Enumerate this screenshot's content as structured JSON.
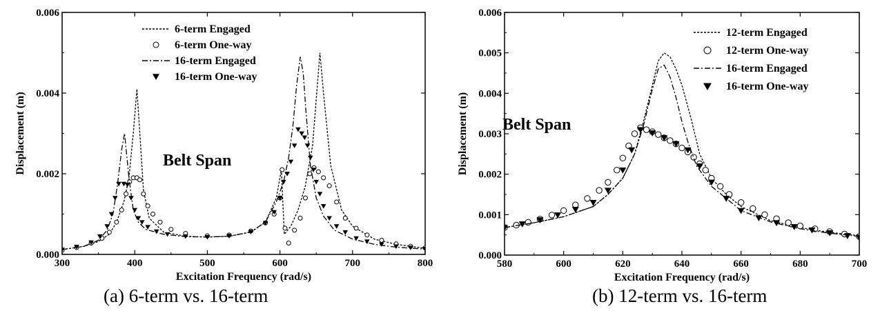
{
  "chart_data": [
    {
      "id": "a",
      "type": "line",
      "caption": "(a) 6-term vs. 16-term",
      "xlabel": "Excitation Frequency (rad/s)",
      "ylabel": "Displacement (m)",
      "xlim": [
        300,
        800
      ],
      "ylim": [
        0,
        0.006
      ],
      "x_ticks": [
        300,
        400,
        500,
        600,
        700,
        800
      ],
      "y_ticks": [
        0.0,
        0.002,
        0.004,
        0.006
      ],
      "y_tick_labels": [
        "0.000",
        "0.002",
        "0.004",
        "0.006"
      ],
      "x_tick_labels": [
        "300",
        "400",
        "500",
        "600",
        "700",
        "800"
      ],
      "annotation": "Belt Span",
      "legend_position": "top-center",
      "series": [
        {
          "name": "6-term Engaged",
          "style": "dashed",
          "x": [
            300,
            330,
            350,
            365,
            375,
            385,
            392,
            398,
            403,
            407,
            412,
            420,
            440,
            470,
            500,
            530,
            560,
            580,
            595,
            602,
            606,
            615,
            625,
            635,
            645,
            652,
            655,
            660,
            670,
            685,
            700,
            730,
            760,
            800
          ],
          "y": [
            0.00012,
            0.0002,
            0.00032,
            0.0005,
            0.0008,
            0.0013,
            0.0019,
            0.003,
            0.0041,
            0.003,
            0.0016,
            0.0009,
            0.00055,
            0.00045,
            0.00043,
            0.00045,
            0.00055,
            0.0008,
            0.0014,
            0.0021,
            0.0005,
            0.0007,
            0.0011,
            0.0017,
            0.0027,
            0.0043,
            0.005,
            0.004,
            0.0022,
            0.0011,
            0.0007,
            0.00038,
            0.00025,
            0.00015
          ]
        },
        {
          "name": "6-term One-way",
          "style": "marker-circle",
          "x": [
            300,
            320,
            340,
            355,
            365,
            375,
            382,
            388,
            393,
            398,
            403,
            407,
            412,
            418,
            425,
            435,
            450,
            470,
            500,
            530,
            560,
            580,
            592,
            600,
            603,
            607,
            612,
            620,
            628,
            635,
            641,
            647,
            653,
            660,
            668,
            678,
            690,
            705,
            720,
            740,
            760,
            780,
            800
          ],
          "y": [
            0.0001,
            0.00017,
            0.00028,
            0.0004,
            0.00055,
            0.0008,
            0.0011,
            0.0015,
            0.0018,
            0.0019,
            0.0019,
            0.00185,
            0.0015,
            0.0012,
            0.001,
            0.0008,
            0.00062,
            0.00052,
            0.00046,
            0.00048,
            0.00058,
            0.00078,
            0.001,
            0.0014,
            0.0021,
            0.00065,
            0.00028,
            0.0006,
            0.0009,
            0.0014,
            0.002,
            0.00215,
            0.00205,
            0.0019,
            0.0017,
            0.0013,
            0.0009,
            0.00065,
            0.00048,
            0.00035,
            0.00026,
            0.0002,
            0.00016
          ]
        },
        {
          "name": "16-term Engaged",
          "style": "dashdot",
          "x": [
            300,
            330,
            350,
            362,
            370,
            376,
            382,
            386,
            392,
            398,
            405,
            415,
            440,
            470,
            500,
            530,
            560,
            580,
            595,
            605,
            612,
            618,
            623,
            628,
            632,
            636,
            642,
            650,
            660,
            675,
            700,
            730,
            760,
            800
          ],
          "y": [
            0.00012,
            0.0002,
            0.00035,
            0.0006,
            0.001,
            0.0017,
            0.0026,
            0.003,
            0.0019,
            0.0011,
            0.0008,
            0.00062,
            0.0005,
            0.00044,
            0.00043,
            0.00045,
            0.00056,
            0.0008,
            0.0013,
            0.0018,
            0.0024,
            0.0032,
            0.0042,
            0.0049,
            0.0045,
            0.0035,
            0.0022,
            0.0014,
            0.00095,
            0.0006,
            0.00038,
            0.00025,
            0.00018,
            0.00013
          ]
        },
        {
          "name": "16-term One-way",
          "style": "marker-triangle",
          "x": [
            300,
            320,
            340,
            352,
            362,
            368,
            373,
            378,
            385,
            390,
            395,
            400,
            405,
            410,
            418,
            430,
            445,
            470,
            500,
            530,
            560,
            580,
            592,
            600,
            605,
            610,
            615,
            620,
            625,
            630,
            634,
            638,
            642,
            646,
            650,
            655,
            660,
            668,
            678,
            690,
            705,
            720,
            740,
            760,
            780,
            800
          ],
          "y": [
            0.00012,
            0.00019,
            0.0003,
            0.00045,
            0.0007,
            0.001,
            0.0014,
            0.00175,
            0.00175,
            0.00173,
            0.0014,
            0.0011,
            0.0009,
            0.0008,
            0.00068,
            0.00057,
            0.0005,
            0.00045,
            0.00043,
            0.00046,
            0.00056,
            0.00078,
            0.00105,
            0.0014,
            0.0018,
            0.002,
            0.0023,
            0.0027,
            0.0031,
            0.003,
            0.0029,
            0.0027,
            0.0024,
            0.0021,
            0.0018,
            0.0015,
            0.0012,
            0.0009,
            0.0007,
            0.00055,
            0.0004,
            0.00032,
            0.00025,
            0.0002,
            0.00017,
            0.00014
          ]
        }
      ]
    },
    {
      "id": "b",
      "type": "line",
      "caption": "(b) 12-term vs. 16-term",
      "xlabel": "Excitation Frequency (rad/s)",
      "ylabel": "Displacement (m)",
      "xlim": [
        580,
        700
      ],
      "ylim": [
        0,
        0.006
      ],
      "x_ticks": [
        580,
        600,
        620,
        640,
        660,
        680,
        700
      ],
      "y_ticks": [
        0.0,
        0.001,
        0.002,
        0.003,
        0.004,
        0.005,
        0.006
      ],
      "y_tick_labels": [
        "0.000",
        "0.001",
        "0.002",
        "0.003",
        "0.004",
        "0.005",
        "0.006"
      ],
      "x_tick_labels": [
        "580",
        "600",
        "620",
        "640",
        "660",
        "680",
        "700"
      ],
      "annotation": "Belt Span",
      "legend_position": "top-right",
      "series": [
        {
          "name": "12-term Engaged",
          "style": "dashed",
          "x": [
            580,
            590,
            600,
            610,
            615,
            620,
            624,
            627,
            630,
            632,
            634,
            636,
            638,
            640,
            643,
            646,
            650,
            655,
            660,
            670,
            680,
            690,
            700
          ],
          "y": [
            0.00068,
            0.0008,
            0.00095,
            0.0012,
            0.0015,
            0.0019,
            0.0025,
            0.0033,
            0.0042,
            0.0048,
            0.005,
            0.0049,
            0.0046,
            0.0042,
            0.0034,
            0.0025,
            0.0019,
            0.0015,
            0.0012,
            0.00085,
            0.00068,
            0.00056,
            0.00048
          ]
        },
        {
          "name": "12-term One-way",
          "style": "marker-circle",
          "x": [
            580,
            584,
            588,
            592,
            596,
            600,
            604,
            608,
            612,
            615,
            618,
            620,
            622,
            624,
            626,
            628,
            630,
            632,
            634,
            636,
            638,
            640,
            642,
            644,
            646,
            648,
            650,
            653,
            656,
            660,
            664,
            668,
            672,
            676,
            680,
            685,
            690,
            695,
            700
          ],
          "y": [
            0.00068,
            0.00074,
            0.00081,
            0.00089,
            0.00099,
            0.0011,
            0.00124,
            0.0014,
            0.0016,
            0.0018,
            0.0021,
            0.0024,
            0.0027,
            0.003,
            0.00315,
            0.0031,
            0.00305,
            0.00298,
            0.0029,
            0.00283,
            0.00275,
            0.00265,
            0.00255,
            0.00242,
            0.00226,
            0.0021,
            0.0019,
            0.0017,
            0.0015,
            0.0013,
            0.00115,
            0.001,
            0.0009,
            0.0008,
            0.00072,
            0.00065,
            0.00058,
            0.00052,
            0.00046
          ]
        },
        {
          "name": "16-term Engaged",
          "style": "dashdot",
          "x": [
            580,
            590,
            600,
            610,
            615,
            620,
            624,
            627,
            630,
            632,
            634,
            636,
            638,
            640,
            642,
            645,
            650,
            655,
            660,
            670,
            680,
            690,
            700
          ],
          "y": [
            0.00068,
            0.0008,
            0.00095,
            0.0012,
            0.0015,
            0.0019,
            0.0025,
            0.0032,
            0.0041,
            0.0046,
            0.0047,
            0.0044,
            0.0039,
            0.0033,
            0.0028,
            0.0022,
            0.0017,
            0.0014,
            0.0011,
            0.00082,
            0.00065,
            0.00054,
            0.00046
          ]
        },
        {
          "name": "16-term One-way",
          "style": "marker-triangle",
          "x": [
            580,
            586,
            592,
            598,
            604,
            610,
            615,
            620,
            623,
            626,
            630,
            634,
            638,
            642,
            646,
            650,
            655,
            660,
            666,
            672,
            678,
            684,
            690,
            696,
            700
          ],
          "y": [
            0.00068,
            0.00077,
            0.00087,
            0.00099,
            0.00113,
            0.0013,
            0.0016,
            0.0021,
            0.0026,
            0.0031,
            0.00302,
            0.0029,
            0.00275,
            0.0026,
            0.0022,
            0.0018,
            0.0014,
            0.0011,
            0.00092,
            0.0008,
            0.0007,
            0.00062,
            0.00055,
            0.00048,
            0.00044
          ]
        }
      ]
    }
  ]
}
